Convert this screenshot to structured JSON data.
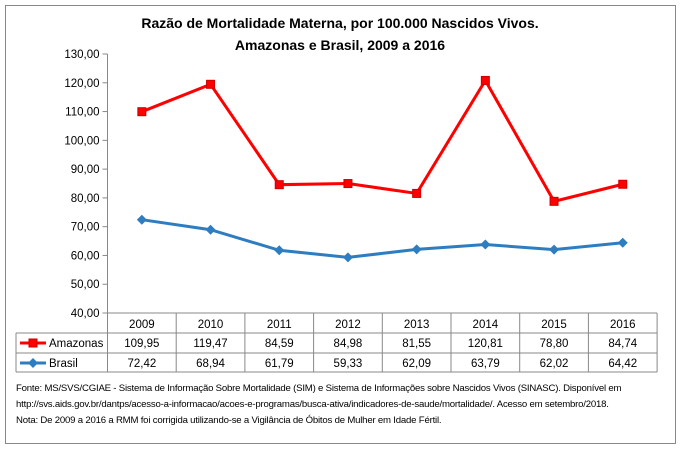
{
  "chart_data": {
    "type": "line",
    "title_line1": "Razão de Mortalidade Materna, por 100.000 Nascidos Vivos.",
    "title_line2": "Amazonas e Brasil, 2009 a 2016",
    "categories": [
      "2009",
      "2010",
      "2011",
      "2012",
      "2013",
      "2014",
      "2015",
      "2016"
    ],
    "ylim": [
      40,
      130
    ],
    "yticks": [
      "40,00",
      "50,00",
      "60,00",
      "70,00",
      "80,00",
      "90,00",
      "100,00",
      "110,00",
      "120,00",
      "130,00"
    ],
    "grid": false,
    "legend": "data-table",
    "series": [
      {
        "name": "Amazonas",
        "color": "#ff0000",
        "marker": "square",
        "values": [
          109.95,
          119.47,
          84.59,
          84.98,
          81.55,
          120.81,
          78.8,
          84.74
        ],
        "labels": [
          "109,95",
          "119,47",
          "84,59",
          "84,98",
          "81,55",
          "120,81",
          "78,80",
          "84,74"
        ]
      },
      {
        "name": "Brasil",
        "color": "#2e7dc0",
        "marker": "diamond",
        "values": [
          72.42,
          68.94,
          61.79,
          59.33,
          62.09,
          63.79,
          62.02,
          64.42
        ],
        "labels": [
          "72,42",
          "68,94",
          "61,79",
          "59,33",
          "62,09",
          "63,79",
          "62,02",
          "64,42"
        ]
      }
    ]
  },
  "notes": {
    "line1": "Fonte: MS/SVS/CGIAE - Sistema de Informação Sobre Mortalidade (SIM) e Sistema de Informações sobre Nascidos Vivos (SINASC). Disponível em",
    "line2": "http://svs.aids.gov.br/dantps/acesso-a-informacao/acoes-e-programas/busca-ativa/indicadores-de-saude/mortalidade/. Acesso em setembro/2018.",
    "line3": "Nota: De 2009 a 2016 a RMM foi corrigida utilizando-se a Vigilância de Óbitos de Mulher em Idade Fértil."
  }
}
